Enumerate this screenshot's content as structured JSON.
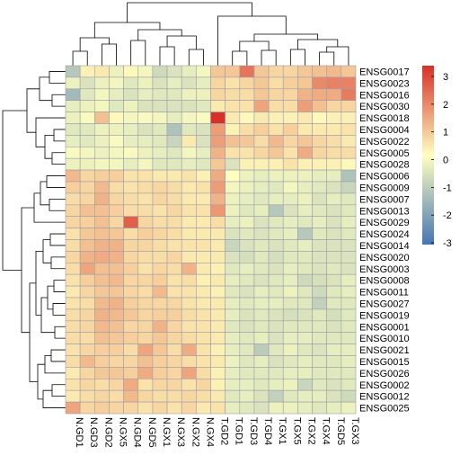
{
  "chart_data": {
    "type": "heatmap",
    "title": "",
    "columns": [
      "N.GD1",
      "N.GD3",
      "N.GD2",
      "N.GX5",
      "N.GD4",
      "N.GD5",
      "N.GX1",
      "N.GX3",
      "N.GX2",
      "N.GX4",
      "T.GD2",
      "T.GD1",
      "T.GD3",
      "T.GD4",
      "T.GX1",
      "T.GX5",
      "T.GX2",
      "T.GX4",
      "T.GD5",
      "T.GX3"
    ],
    "rows": [
      "ENSG0017",
      "ENSG0023",
      "ENSG0016",
      "ENSG0030",
      "ENSG0018",
      "ENSG0004",
      "ENSG0022",
      "ENSG0005",
      "ENSG0028",
      "ENSG0006",
      "ENSG0009",
      "ENSG0007",
      "ENSG0013",
      "ENSG0029",
      "ENSG0024",
      "ENSG0014",
      "ENSG0020",
      "ENSG0003",
      "ENSG0008",
      "ENSG0011",
      "ENSG0027",
      "ENSG0019",
      "ENSG0001",
      "ENSG0010",
      "ENSG0021",
      "ENSG0015",
      "ENSG0026",
      "ENSG0002",
      "ENSG0012",
      "ENSG0025"
    ],
    "values": [
      [
        -1.2,
        0.2,
        0.3,
        -0.3,
        0.1,
        -0.2,
        -0.8,
        -0.6,
        -0.4,
        -0.2,
        0.8,
        0.8,
        2.0,
        0.8,
        0.6,
        0.6,
        0.8,
        0.9,
        1.0,
        0.8
      ],
      [
        -0.3,
        -0.6,
        -0.3,
        -0.2,
        -0.5,
        -0.3,
        -0.6,
        -0.4,
        -0.6,
        -0.4,
        0.6,
        0.4,
        0.6,
        0.8,
        0.5,
        0.7,
        0.8,
        1.7,
        1.8,
        1.8
      ],
      [
        -1.5,
        -0.5,
        -0.2,
        -0.4,
        -0.6,
        -0.4,
        -0.5,
        -0.5,
        -0.3,
        -0.3,
        0.6,
        0.5,
        0.5,
        0.8,
        0.6,
        0.6,
        1.1,
        1.2,
        1.2,
        1.9
      ],
      [
        -0.4,
        -0.3,
        -0.2,
        -0.5,
        -0.3,
        -0.6,
        -0.6,
        -0.6,
        -0.6,
        -0.5,
        0.3,
        0.4,
        0.4,
        1.3,
        0.5,
        0.5,
        1.4,
        0.9,
        0.6,
        0.6
      ],
      [
        -0.3,
        -0.1,
        0.9,
        0.1,
        -0.2,
        -0.1,
        -0.2,
        -0.4,
        -0.2,
        -0.1,
        3.0,
        0.3,
        0.1,
        0.3,
        0.2,
        0.2,
        0.3,
        0.1,
        0.2,
        0.2
      ],
      [
        -0.5,
        -0.5,
        -0.3,
        -0.3,
        -0.4,
        -0.6,
        -0.5,
        -1.3,
        -0.5,
        -0.6,
        1.4,
        0.2,
        0.5,
        0.7,
        0.4,
        0.7,
        0.3,
        0.3,
        0.3,
        0.4
      ],
      [
        -0.4,
        -0.5,
        -0.3,
        -0.1,
        -0.4,
        -0.4,
        -0.5,
        -0.9,
        0.3,
        -0.6,
        1.4,
        0.9,
        0.8,
        0.5,
        1.0,
        0.6,
        0.8,
        0.6,
        0.5,
        0.3
      ],
      [
        -0.1,
        -0.2,
        -0.3,
        -0.2,
        -0.1,
        -0.3,
        -0.4,
        -0.5,
        -0.2,
        -0.4,
        1.1,
        0.4,
        0.4,
        0.6,
        0.8,
        0.4,
        1.2,
        0.6,
        0.5,
        0.5
      ],
      [
        -0.3,
        -0.3,
        -0.2,
        -0.2,
        -0.4,
        -0.2,
        -0.5,
        -0.5,
        -0.4,
        -0.5,
        0.8,
        -0.6,
        0.2,
        0.2,
        0.2,
        0.4,
        0.2,
        0.2,
        0.2,
        0.1
      ],
      [
        1.0,
        0.6,
        0.7,
        0.7,
        0.4,
        0.4,
        0.3,
        0.3,
        0.4,
        0.2,
        1.2,
        0.0,
        -0.3,
        -0.4,
        -0.3,
        -0.3,
        -0.3,
        -0.4,
        -0.4,
        -1.3
      ],
      [
        0.7,
        0.6,
        1.0,
        0.5,
        0.4,
        0.5,
        0.6,
        0.5,
        0.3,
        0.4,
        1.4,
        -0.2,
        -0.3,
        -0.4,
        -0.5,
        -0.2,
        -0.4,
        -0.5,
        -0.6,
        -0.9
      ],
      [
        0.5,
        0.6,
        1.1,
        0.6,
        0.5,
        0.4,
        0.6,
        0.5,
        0.3,
        0.3,
        1.1,
        -0.3,
        -0.4,
        -0.5,
        -0.4,
        -0.4,
        -0.3,
        -0.6,
        -0.4,
        -0.5
      ],
      [
        0.6,
        0.9,
        0.9,
        0.7,
        0.5,
        0.5,
        0.4,
        0.6,
        0.4,
        0.4,
        1.5,
        -0.3,
        -0.5,
        -0.4,
        -1.2,
        -0.6,
        -0.4,
        -0.5,
        -0.6,
        -0.5
      ],
      [
        0.6,
        0.7,
        0.9,
        0.6,
        2.3,
        0.6,
        0.5,
        0.5,
        0.3,
        0.3,
        0.5,
        -0.4,
        -0.3,
        -0.6,
        -0.5,
        -0.4,
        -0.5,
        -0.4,
        -0.6,
        -0.4
      ],
      [
        0.4,
        0.8,
        0.9,
        0.8,
        0.5,
        0.7,
        0.6,
        0.5,
        0.3,
        0.3,
        0.3,
        -0.6,
        -0.5,
        -0.6,
        -0.5,
        -0.4,
        -1.2,
        -0.5,
        -0.6,
        -0.5
      ],
      [
        0.5,
        0.9,
        1.1,
        1.1,
        0.6,
        0.6,
        0.5,
        0.4,
        0.4,
        0.4,
        0.3,
        -0.9,
        -0.6,
        -0.5,
        -0.6,
        -0.5,
        -0.4,
        -0.6,
        -0.6,
        -0.6
      ],
      [
        0.6,
        1.1,
        1.2,
        1.1,
        0.6,
        0.5,
        0.5,
        0.6,
        0.3,
        0.3,
        0.3,
        -0.6,
        -0.7,
        -0.5,
        -0.7,
        -0.5,
        -0.5,
        -0.6,
        -0.6,
        -0.6
      ],
      [
        0.5,
        1.3,
        0.9,
        0.9,
        0.7,
        0.4,
        0.6,
        0.5,
        1.1,
        0.3,
        0.2,
        -0.5,
        -0.4,
        -0.5,
        -0.6,
        -0.4,
        -0.5,
        -0.6,
        -0.5,
        -0.6
      ],
      [
        0.4,
        0.7,
        0.9,
        1.0,
        0.6,
        0.6,
        0.7,
        0.4,
        0.5,
        0.2,
        0.3,
        -0.4,
        -0.5,
        -0.6,
        -0.5,
        -0.4,
        -0.8,
        -0.7,
        -0.6,
        -0.4
      ],
      [
        0.3,
        0.6,
        0.8,
        0.8,
        0.6,
        0.5,
        1.0,
        0.4,
        0.4,
        0.3,
        0.2,
        -0.5,
        -0.6,
        -0.4,
        -0.5,
        -0.3,
        -0.5,
        -0.8,
        -0.5,
        -0.4
      ],
      [
        0.4,
        0.5,
        1.0,
        1.1,
        0.7,
        0.6,
        0.6,
        0.6,
        0.4,
        0.3,
        0.3,
        -0.4,
        -0.5,
        -0.4,
        -0.4,
        -0.5,
        -0.5,
        -1.0,
        -0.5,
        -0.5
      ],
      [
        0.5,
        0.6,
        1.1,
        1.0,
        0.8,
        0.6,
        0.7,
        0.7,
        0.5,
        0.4,
        0.3,
        -0.4,
        -0.6,
        -0.5,
        -0.6,
        -0.7,
        -0.6,
        -0.5,
        -0.7,
        -0.5
      ],
      [
        0.5,
        0.6,
        1.0,
        0.9,
        0.6,
        0.6,
        1.1,
        0.6,
        0.4,
        0.4,
        0.3,
        -0.5,
        -0.6,
        -0.5,
        -0.6,
        -0.5,
        -0.5,
        -0.5,
        -0.6,
        -0.5
      ],
      [
        0.5,
        0.5,
        0.9,
        0.8,
        0.7,
        0.6,
        0.8,
        0.6,
        0.5,
        0.4,
        0.3,
        -0.4,
        -0.5,
        -0.4,
        -0.6,
        -0.4,
        -0.4,
        -0.5,
        -0.5,
        -0.5
      ],
      [
        0.4,
        0.6,
        0.7,
        0.7,
        0.5,
        1.3,
        0.8,
        0.5,
        1.2,
        0.4,
        0.2,
        -0.4,
        -0.5,
        -1.1,
        -0.5,
        -0.3,
        -0.5,
        -0.6,
        -0.4,
        -0.4
      ],
      [
        0.5,
        1.0,
        0.7,
        0.6,
        0.6,
        0.9,
        0.7,
        0.6,
        0.5,
        0.4,
        0.3,
        -0.3,
        -0.5,
        -0.4,
        -0.6,
        -0.5,
        -0.4,
        -0.5,
        -0.5,
        -0.4
      ],
      [
        0.3,
        0.6,
        0.8,
        0.8,
        0.7,
        1.2,
        0.7,
        0.6,
        1.3,
        0.5,
        0.2,
        -0.4,
        -0.5,
        -0.5,
        -0.5,
        -0.4,
        -0.4,
        -0.5,
        -0.5,
        -0.5
      ],
      [
        0.4,
        0.6,
        0.5,
        0.6,
        1.2,
        0.4,
        0.6,
        0.6,
        0.4,
        0.6,
        0.2,
        -0.4,
        -0.4,
        -0.5,
        -0.4,
        -0.3,
        -0.9,
        -0.5,
        -0.6,
        -0.5
      ],
      [
        0.3,
        0.5,
        0.6,
        0.5,
        1.0,
        0.6,
        0.5,
        0.5,
        0.6,
        0.5,
        0.3,
        -0.5,
        -0.4,
        -0.6,
        -1.0,
        -0.5,
        -0.4,
        -0.4,
        -0.6,
        -0.8
      ],
      [
        1.3,
        0.6,
        0.7,
        0.6,
        0.6,
        0.4,
        0.6,
        0.4,
        0.6,
        0.3,
        0.4,
        -0.4,
        -0.5,
        -0.6,
        -0.3,
        -0.3,
        -0.4,
        -0.5,
        -0.4,
        -0.3
      ]
    ],
    "legend_ticks": [
      3,
      2,
      1,
      0,
      -1,
      -2,
      -3
    ],
    "color_range": [
      -3,
      3
    ],
    "colors": {
      "low": "#4575B4",
      "mid": "#FFFFBF",
      "high": "#D73027",
      "grid": "#9E9EA6"
    },
    "dendrograms": {
      "rows": true,
      "columns": true
    }
  }
}
